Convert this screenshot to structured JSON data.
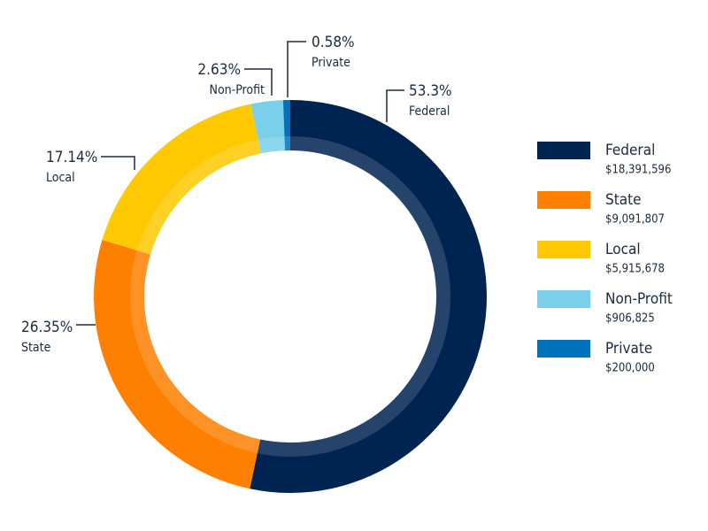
{
  "chart_data": {
    "type": "pie",
    "categories": [
      "Federal",
      "State",
      "Local",
      "Non-Profit",
      "Private"
    ],
    "values": [
      53.3,
      26.35,
      17.14,
      2.63,
      0.58
    ],
    "value_labels": [
      "53.3%",
      "26.35%",
      "17.14%",
      "2.63%",
      "0.58%"
    ],
    "amount_labels": [
      "$18,391,596",
      "$9,091,807",
      "$5,915,678",
      "$906,825",
      "$200,000"
    ],
    "colors": [
      "#002452",
      "#ff7f00",
      "#ffc800",
      "#7ad0eb",
      "#0072bc"
    ],
    "donut": true
  }
}
